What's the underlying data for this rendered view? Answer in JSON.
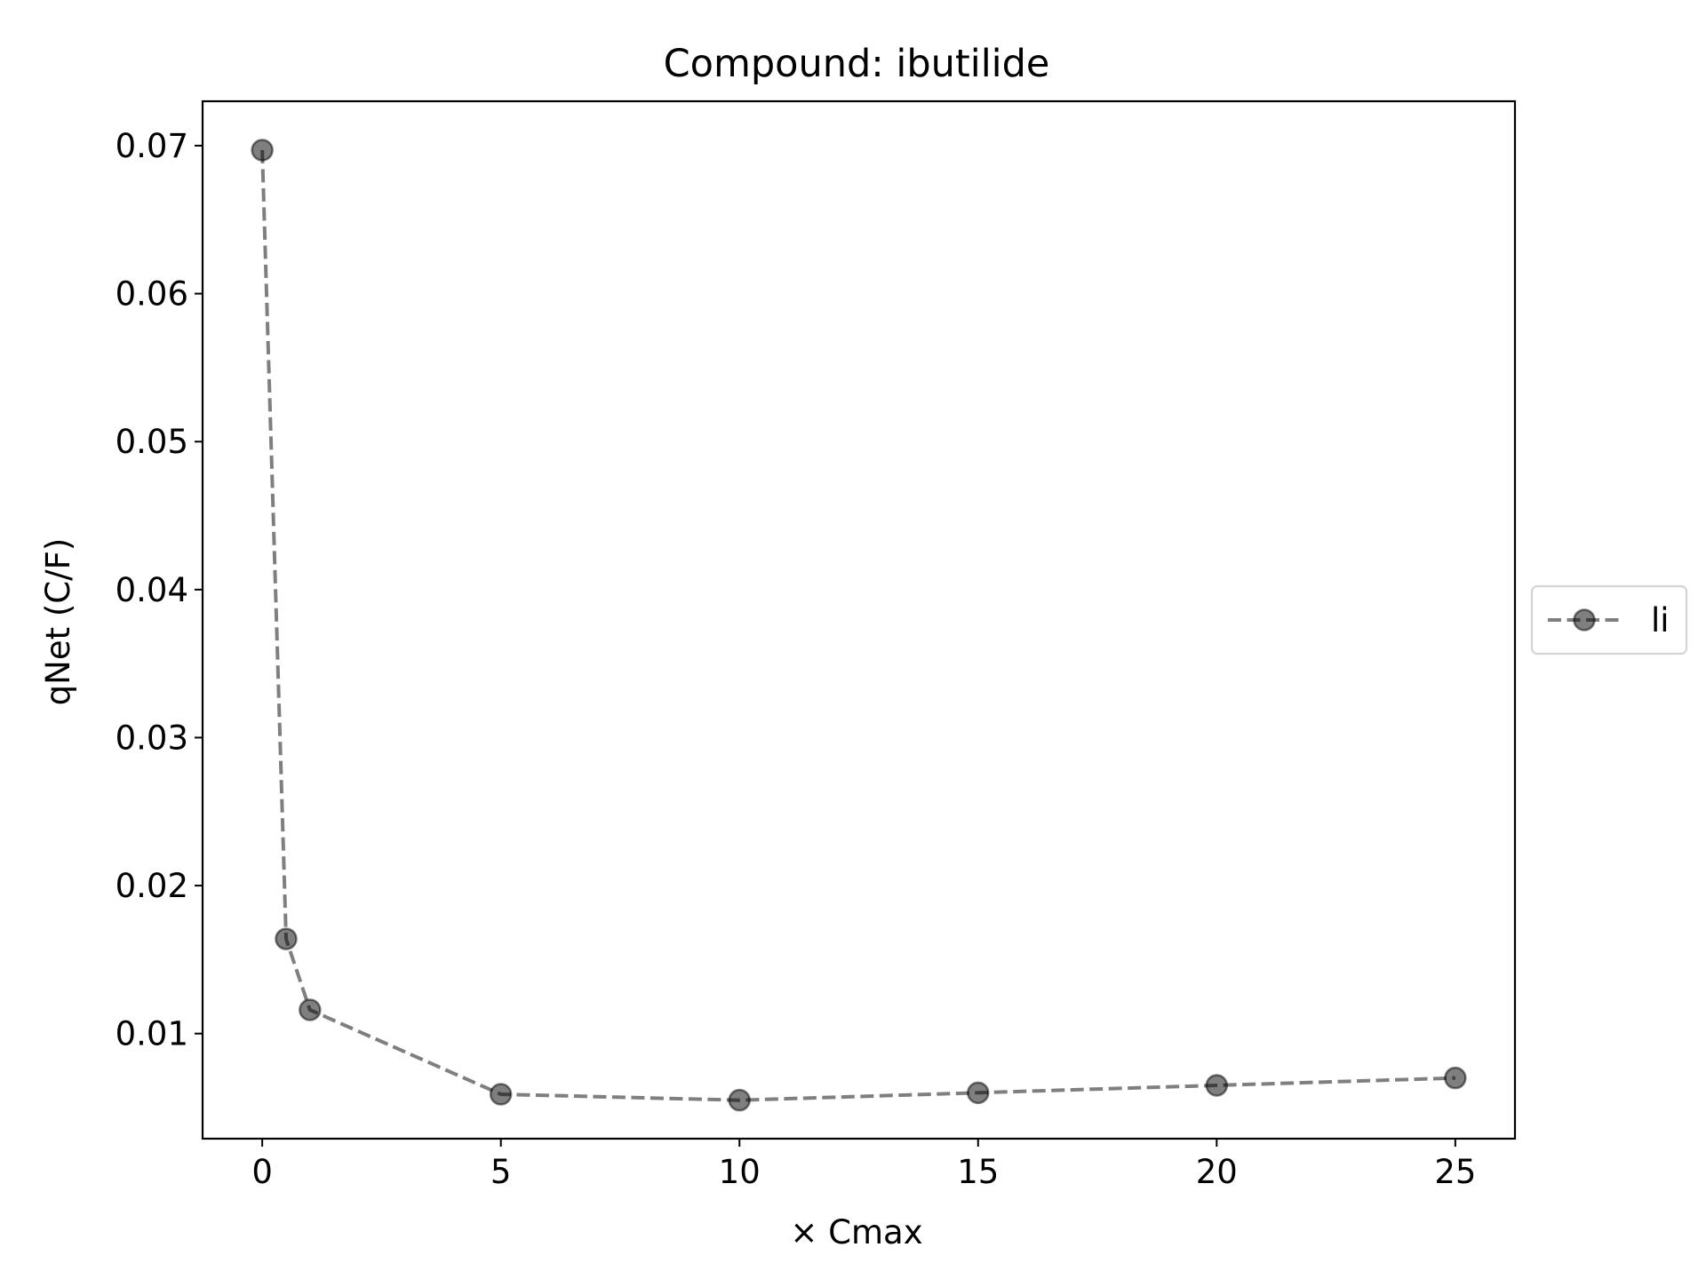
{
  "chart_data": {
    "type": "line",
    "title": "Compound: ibutilide",
    "xlabel": "× Cmax",
    "ylabel": "qNet (C/F)",
    "xlim": [
      -1.25,
      26.25
    ],
    "ylim": [
      0.0029,
      0.073
    ],
    "xticks": [
      0,
      5,
      10,
      15,
      20,
      25
    ],
    "xtick_labels": [
      "0",
      "5",
      "10",
      "15",
      "20",
      "25"
    ],
    "yticks": [
      0.01,
      0.02,
      0.03,
      0.04,
      0.05,
      0.06,
      0.07
    ],
    "ytick_labels": [
      "0.01",
      "0.02",
      "0.03",
      "0.04",
      "0.05",
      "0.06",
      "0.07"
    ],
    "grid": false,
    "legend_position": "center-right outside",
    "series": [
      {
        "name": "li",
        "color": "#000000",
        "alpha": 0.5,
        "line_style": "dashed",
        "marker": "circle",
        "x": [
          0,
          0.5,
          1,
          5,
          10,
          15,
          20,
          25
        ],
        "y": [
          0.0697,
          0.0164,
          0.0116,
          0.0059,
          0.0055,
          0.006,
          0.0065,
          0.007
        ]
      }
    ]
  }
}
